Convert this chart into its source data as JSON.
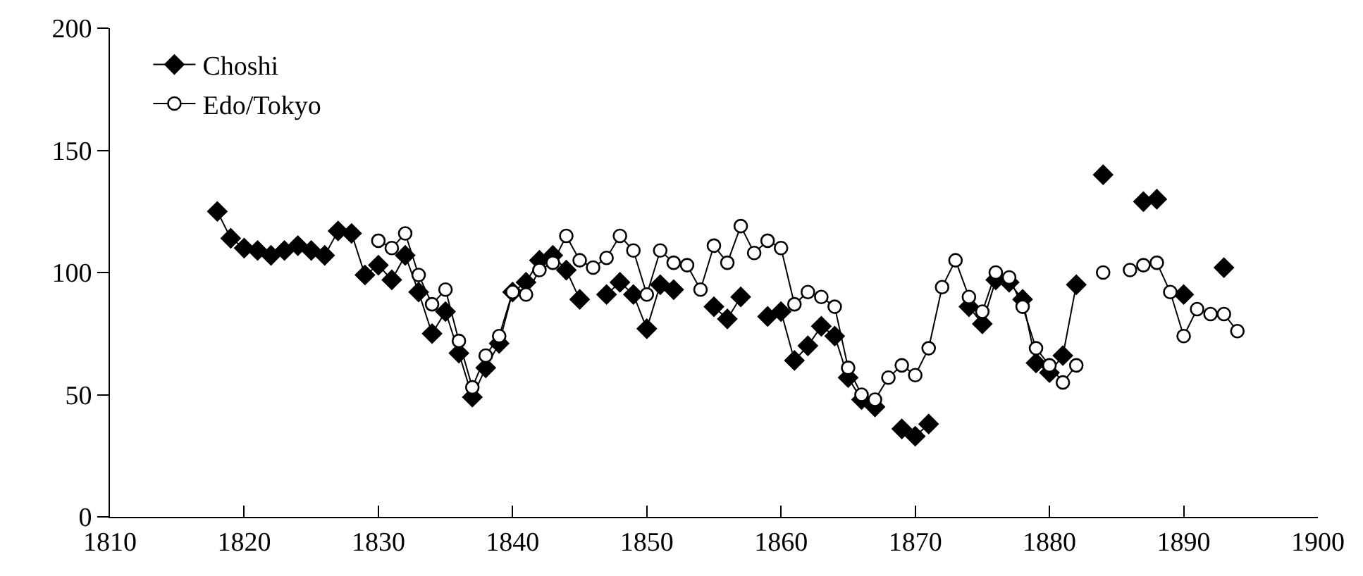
{
  "chart_data": {
    "type": "line",
    "xlim": [
      1810,
      1900
    ],
    "xticks": [
      1810,
      1820,
      1830,
      1840,
      1850,
      1860,
      1870,
      1880,
      1890,
      1900
    ],
    "ylim": [
      0,
      200
    ],
    "yticks": [
      0,
      50,
      100,
      150,
      200
    ],
    "grid": false,
    "legend": "top left",
    "line_style": "solid",
    "x": [
      1818,
      1819,
      1820,
      1821,
      1822,
      1823,
      1824,
      1825,
      1826,
      1827,
      1828,
      1829,
      1830,
      1831,
      1832,
      1833,
      1834,
      1835,
      1836,
      1837,
      1838,
      1839,
      1840,
      1841,
      1842,
      1843,
      1844,
      1845,
      1846,
      1847,
      1848,
      1849,
      1850,
      1851,
      1852,
      1853,
      1854,
      1855,
      1856,
      1857,
      1858,
      1859,
      1860,
      1861,
      1862,
      1863,
      1864,
      1865,
      1866,
      1867,
      1868,
      1869,
      1870,
      1871,
      1872,
      1873,
      1874,
      1875,
      1876,
      1877,
      1878,
      1879,
      1880,
      1881,
      1882,
      1883,
      1884,
      1885,
      1886,
      1887,
      1888,
      1889,
      1890,
      1891,
      1892,
      1893,
      1894
    ],
    "series": [
      {
        "name": "Choshi",
        "color": "#000000",
        "marker": "diamond",
        "values": [
          125,
          114,
          110,
          109,
          107,
          109,
          111,
          109,
          107,
          117,
          116,
          99,
          103,
          97,
          107,
          92,
          75,
          84,
          67,
          49,
          61,
          71,
          92,
          96,
          105,
          107,
          101,
          89,
          null,
          91,
          96,
          91,
          77,
          95,
          93,
          null,
          null,
          86,
          81,
          90,
          null,
          82,
          84,
          64,
          70,
          78,
          74,
          57,
          48,
          45,
          null,
          36,
          33,
          38,
          null,
          null,
          86,
          79,
          97,
          96,
          89,
          63,
          59,
          66,
          95,
          null,
          140,
          null,
          null,
          129,
          130,
          null,
          91,
          null,
          null,
          102,
          null
        ]
      },
      {
        "name": "Edo/Tokyo",
        "color": "#000000",
        "marker": "circle",
        "values": [
          null,
          null,
          null,
          null,
          null,
          null,
          null,
          null,
          null,
          null,
          null,
          null,
          113,
          110,
          116,
          99,
          87,
          93,
          72,
          53,
          66,
          74,
          92,
          91,
          101,
          104,
          115,
          105,
          102,
          106,
          115,
          109,
          91,
          109,
          104,
          103,
          93,
          111,
          104,
          119,
          108,
          113,
          110,
          87,
          92,
          90,
          86,
          61,
          50,
          48,
          57,
          62,
          58,
          69,
          94,
          105,
          90,
          84,
          100,
          98,
          86,
          69,
          62,
          55,
          62,
          null,
          100,
          null,
          101,
          103,
          104,
          92,
          74,
          85,
          83,
          83,
          76
        ]
      }
    ]
  }
}
